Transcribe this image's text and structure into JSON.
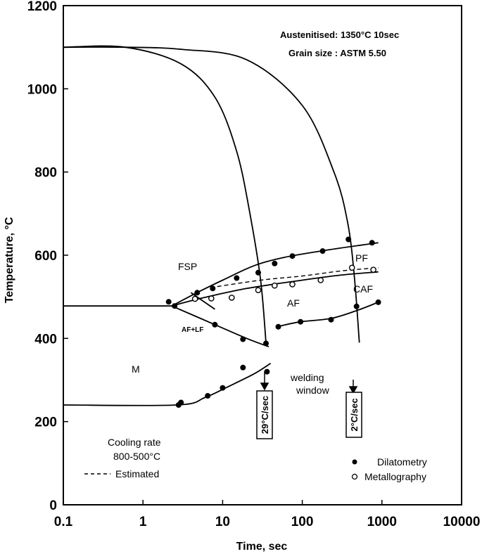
{
  "chart_data": {
    "type": "scatter",
    "x_scale": "log",
    "xlim": [
      0.1,
      10000
    ],
    "ylim": [
      0,
      1200
    ],
    "xlabel": "Time, sec",
    "ylabel": "Temperature, °C",
    "x_ticks": [
      "0.1",
      "1",
      "10",
      "100",
      "1000",
      "10000"
    ],
    "y_ticks": [
      "0",
      "200",
      "400",
      "600",
      "800",
      "1000",
      "1200"
    ],
    "annotations": {
      "austenitised": "Austenitised: 1350°C 10sec",
      "grain_size": "Grain size : ASTM 5.50",
      "cooling_rate": "Cooling rate",
      "range": "800-500°C",
      "estimated": "Estimated",
      "welding": "welding",
      "window": "window"
    },
    "regions": [
      "FSP",
      "PF",
      "CAF",
      "AF",
      "AF+LF",
      "M"
    ],
    "cooling_rates": [
      "29°C/sec",
      "2°C/sec"
    ],
    "legend": {
      "dilatometry": "Dilatometry",
      "metallography": "Metallography"
    },
    "series": [
      {
        "name": "Dilatometry",
        "marker": "filled",
        "points": [
          [
            2.1,
            488
          ],
          [
            4.8,
            510
          ],
          [
            7.5,
            520
          ],
          [
            15,
            545
          ],
          [
            28,
            558
          ],
          [
            45,
            580
          ],
          [
            75,
            598
          ],
          [
            180,
            610
          ],
          [
            380,
            638
          ],
          [
            750,
            630
          ],
          [
            2.5,
            478
          ],
          [
            8,
            433
          ],
          [
            18,
            398
          ],
          [
            35,
            388
          ],
          [
            2.8,
            240
          ],
          [
            3,
            246
          ],
          [
            6.5,
            262
          ],
          [
            10,
            281
          ],
          [
            18,
            330
          ],
          [
            36,
            320
          ],
          [
            50,
            428
          ],
          [
            95,
            440
          ],
          [
            230,
            445
          ],
          [
            480,
            477
          ],
          [
            900,
            487
          ]
        ]
      },
      {
        "name": "Metallography",
        "marker": "open",
        "points": [
          [
            4.5,
            495
          ],
          [
            7.2,
            496
          ],
          [
            13,
            498
          ],
          [
            28,
            516
          ],
          [
            45,
            527
          ],
          [
            75,
            530
          ],
          [
            170,
            540
          ],
          [
            420,
            570
          ],
          [
            780,
            565
          ]
        ]
      }
    ],
    "curves": [
      {
        "style": "solid",
        "points": [
          [
            0.1,
            1100
          ],
          [
            0.6,
            1100
          ],
          [
            3,
            1060
          ],
          [
            8,
            980
          ],
          [
            15,
            850
          ],
          [
            22,
            700
          ],
          [
            30,
            540
          ],
          [
            35,
            390
          ]
        ]
      },
      {
        "style": "solid",
        "points": [
          [
            0.1,
            1100
          ],
          [
            0.6,
            1100
          ],
          [
            3,
            1095
          ],
          [
            20,
            1070
          ],
          [
            100,
            960
          ],
          [
            250,
            800
          ],
          [
            370,
            680
          ],
          [
            450,
            550
          ],
          [
            520,
            390
          ]
        ]
      },
      {
        "style": "solid",
        "points": [
          [
            0.1,
            478
          ],
          [
            2.5,
            478
          ]
        ]
      },
      {
        "style": "solid",
        "points": [
          [
            2.3,
            478
          ],
          [
            5,
            512
          ],
          [
            10,
            540
          ],
          [
            25,
            575
          ],
          [
            60,
            595
          ],
          [
            200,
            612
          ],
          [
            900,
            630
          ]
        ]
      },
      {
        "style": "solid",
        "points": [
          [
            2.3,
            478
          ],
          [
            5,
            495
          ],
          [
            20,
            520
          ],
          [
            100,
            540
          ],
          [
            300,
            552
          ],
          [
            900,
            560
          ]
        ]
      },
      {
        "style": "dashed",
        "points": [
          [
            7,
            522
          ],
          [
            30,
            540
          ],
          [
            100,
            550
          ],
          [
            300,
            562
          ],
          [
            900,
            570
          ]
        ]
      },
      {
        "style": "solid",
        "points": [
          [
            2.3,
            478
          ],
          [
            8,
            433
          ],
          [
            20,
            400
          ],
          [
            38,
            380
          ]
        ]
      },
      {
        "style": "solid",
        "points": [
          [
            48,
            428
          ],
          [
            95,
            440
          ],
          [
            230,
            448
          ],
          [
            500,
            468
          ],
          [
            900,
            487
          ]
        ]
      },
      {
        "style": "solid",
        "points": [
          [
            0.1,
            240
          ],
          [
            2.7,
            240
          ],
          [
            6,
            258
          ],
          [
            12,
            285
          ],
          [
            25,
            315
          ],
          [
            40,
            340
          ]
        ]
      },
      {
        "style": "solid",
        "points": [
          [
            4,
            510
          ],
          [
            8,
            470
          ]
        ]
      }
    ]
  }
}
